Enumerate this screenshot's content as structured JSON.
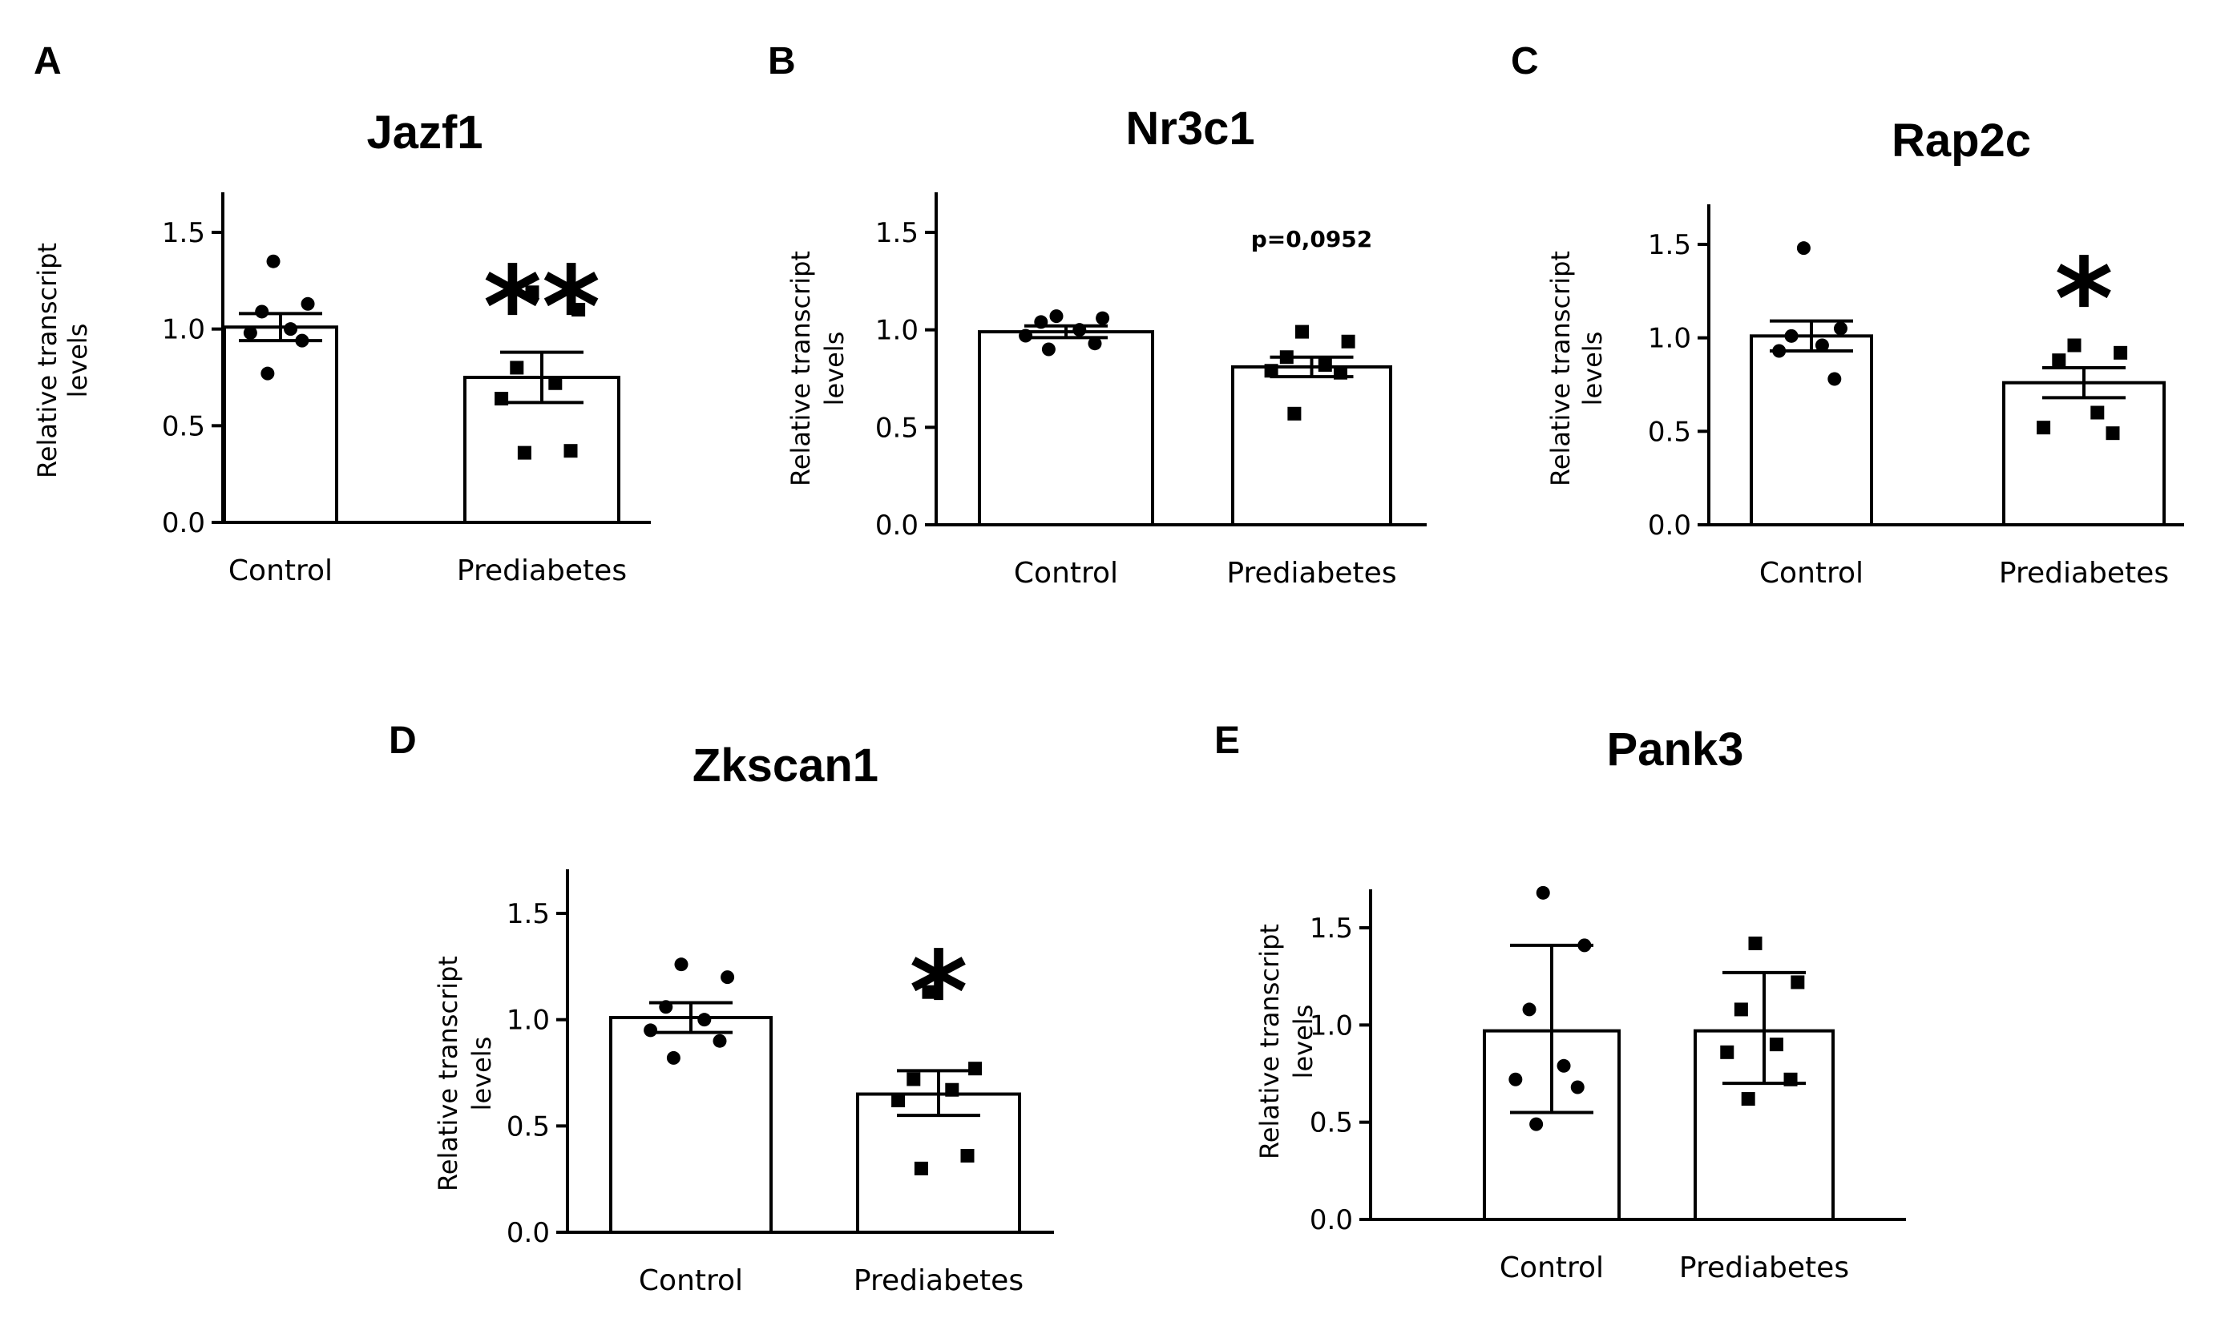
{
  "chart_data": [
    {
      "panel": "A",
      "type": "bar",
      "title": "Jazf1",
      "ylabel_lines": [
        "Relative transcript",
        "levels"
      ],
      "yticks": [
        "0.0",
        "0.5",
        "1.0",
        "1.5"
      ],
      "ylim": [
        0,
        1.7
      ],
      "categories": [
        "Control",
        "Prediabetes"
      ],
      "values": [
        1.01,
        0.75
      ],
      "error": [
        [
          0.94,
          1.08
        ],
        [
          0.62,
          0.88
        ]
      ],
      "points": [
        {
          "marker": "circle",
          "y": [
            1.35,
            1.13,
            1.09,
            1.0,
            0.98,
            0.94,
            0.77
          ]
        },
        {
          "marker": "square",
          "y": [
            1.19,
            1.1,
            0.8,
            0.72,
            0.64,
            0.37,
            0.36
          ]
        }
      ],
      "annotation": "**",
      "annotation_category": 1
    },
    {
      "panel": "B",
      "type": "bar",
      "title": "Nr3c1",
      "ylabel_lines": [
        "Relative transcript",
        "levels"
      ],
      "yticks": [
        "0.0",
        "0.5",
        "1.0",
        "1.5"
      ],
      "ylim": [
        0,
        1.7
      ],
      "categories": [
        "Control",
        "Prediabetes"
      ],
      "values": [
        0.99,
        0.81
      ],
      "error": [
        [
          0.96,
          1.02
        ],
        [
          0.76,
          0.86
        ]
      ],
      "points": [
        {
          "marker": "circle",
          "y": [
            1.07,
            1.06,
            1.04,
            1.0,
            0.97,
            0.93,
            0.9
          ]
        },
        {
          "marker": "square",
          "y": [
            0.99,
            0.94,
            0.86,
            0.82,
            0.79,
            0.78,
            0.57
          ]
        }
      ],
      "annotation": "p=0,0952",
      "annotation_category": 1
    },
    {
      "panel": "C",
      "type": "bar",
      "title": "Rap2c",
      "ylabel_lines": [
        "Relative transcript",
        "levels"
      ],
      "yticks": [
        "0.0",
        "0.5",
        "1.0",
        "1.5"
      ],
      "ylim": [
        0,
        1.7
      ],
      "categories": [
        "Control",
        "Prediabetes"
      ],
      "values": [
        1.01,
        0.76
      ],
      "error": [
        [
          0.93,
          1.09
        ],
        [
          0.68,
          0.84
        ]
      ],
      "points": [
        {
          "marker": "circle",
          "y": [
            1.48,
            1.05,
            1.01,
            0.96,
            0.93,
            0.78
          ]
        },
        {
          "marker": "square",
          "y": [
            0.96,
            0.92,
            0.88,
            0.6,
            0.52,
            0.49
          ]
        }
      ],
      "annotation": "*",
      "annotation_category": 1
    },
    {
      "panel": "D",
      "type": "bar",
      "title": "Zkscan1",
      "ylabel_lines": [
        "Relative transcript",
        "levels"
      ],
      "yticks": [
        "0.0",
        "0.5",
        "1.0",
        "1.5"
      ],
      "ylim": [
        0,
        1.7
      ],
      "categories": [
        "Control",
        "Prediabetes"
      ],
      "values": [
        1.01,
        0.65
      ],
      "error": [
        [
          0.94,
          1.08
        ],
        [
          0.55,
          0.76
        ]
      ],
      "points": [
        {
          "marker": "circle",
          "y": [
            1.26,
            1.2,
            1.06,
            1.0,
            0.95,
            0.9,
            0.82
          ]
        },
        {
          "marker": "square",
          "y": [
            1.13,
            0.77,
            0.72,
            0.67,
            0.62,
            0.36,
            0.3
          ]
        }
      ],
      "annotation": "*",
      "annotation_category": 1
    },
    {
      "panel": "E",
      "type": "bar",
      "title": "Pank3",
      "ylabel_lines": [
        "Relative transcript",
        "levels"
      ],
      "yticks": [
        "0.0",
        "0.5",
        "1.0",
        "1.5"
      ],
      "ylim": [
        0,
        1.7
      ],
      "categories": [
        "Control",
        "Prediabetes"
      ],
      "values": [
        0.97,
        0.97
      ],
      "error": [
        [
          0.55,
          1.41
        ],
        [
          0.7,
          1.27
        ]
      ],
      "points": [
        {
          "marker": "circle",
          "y": [
            1.68,
            1.41,
            1.08,
            0.79,
            0.72,
            0.68,
            0.49
          ]
        },
        {
          "marker": "square",
          "y": [
            1.42,
            1.22,
            1.08,
            0.9,
            0.86,
            0.72,
            0.62
          ]
        }
      ],
      "annotation": "",
      "annotation_category": 1
    }
  ]
}
